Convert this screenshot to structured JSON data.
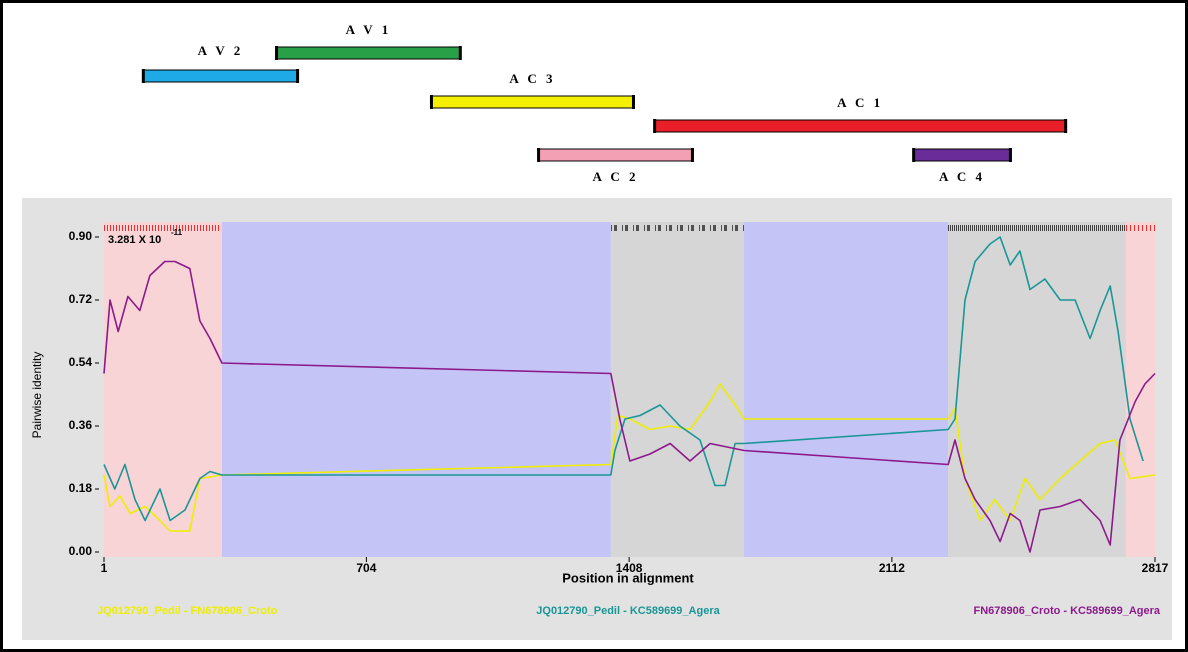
{
  "chart_data": {
    "type": "line",
    "xlabel": "Position in alignment",
    "ylabel": "Pairwise identity",
    "annotation": {
      "base": "3.281 X 10",
      "exponent": "-11"
    },
    "xlim": [
      1,
      2817
    ],
    "ylim": [
      0,
      0.9
    ],
    "xticks": [
      1,
      704,
      1408,
      2112,
      2817
    ],
    "yticks": [
      {
        "value": 0,
        "label": "0.00"
      },
      0.18,
      0.36,
      0.54,
      0.72,
      {
        "value": 0.9,
        "label": "0.90"
      }
    ],
    "genes": [
      {
        "name": "A V 2",
        "start": 105,
        "end": 521,
        "color": "#1eaae6"
      },
      {
        "name": "A V 1",
        "start": 462,
        "end": 957,
        "color": "#28a048"
      },
      {
        "name": "A C 3",
        "start": 877,
        "end": 1421,
        "color": "#f5f000"
      },
      {
        "name": "A C 1",
        "start": 1475,
        "end": 2579,
        "color": "#e81e28"
      },
      {
        "name": "A C 2",
        "start": 1164,
        "end": 1579,
        "color": "#f4a0b4"
      },
      {
        "name": "A C 4",
        "start": 2169,
        "end": 2431,
        "color": "#6a2c98"
      }
    ],
    "regions": [
      {
        "start": 1,
        "end": 317,
        "color": "#f8d4d6"
      },
      {
        "start": 317,
        "end": 1359,
        "color": "#c4c4f6"
      },
      {
        "start": 1359,
        "end": 1716,
        "color": "#d6d6d6"
      },
      {
        "start": 1716,
        "end": 2263,
        "color": "#c4c4f6"
      },
      {
        "start": 2263,
        "end": 2739,
        "color": "#d6d6d6"
      },
      {
        "start": 2739,
        "end": 2817,
        "color": "#f8d4d6"
      }
    ],
    "series": [
      {
        "name": "JQ012790_Pedil - FN678906_Croto",
        "color": "#eeee00",
        "x": [
          1,
          17,
          44,
          71,
          111,
          151,
          178,
          231,
          258,
          317,
          1359,
          1378,
          1410,
          1464,
          1518,
          1571,
          1625,
          1652,
          1692,
          1716,
          2263,
          2281,
          2308,
          2348,
          2388,
          2429,
          2469,
          2509,
          2563,
          2616,
          2670,
          2710,
          2750,
          2817
        ],
        "values": [
          0.22,
          0.13,
          0.16,
          0.11,
          0.13,
          0.09,
          0.06,
          0.06,
          0.21,
          0.22,
          0.25,
          0.39,
          0.38,
          0.35,
          0.36,
          0.35,
          0.43,
          0.48,
          0.42,
          0.38,
          0.38,
          0.41,
          0.21,
          0.09,
          0.15,
          0.09,
          0.21,
          0.15,
          0.21,
          0.26,
          0.31,
          0.32,
          0.21,
          0.22
        ]
      },
      {
        "name": "JQ012790_Pedil - KC589699_Agera",
        "color": "#1a9696",
        "x": [
          1,
          30,
          57,
          84,
          111,
          151,
          178,
          218,
          258,
          285,
          317,
          1359,
          1370,
          1397,
          1437,
          1491,
          1544,
          1598,
          1638,
          1665,
          1692,
          1716,
          2263,
          2281,
          2308,
          2335,
          2375,
          2402,
          2429,
          2455,
          2482,
          2522,
          2563,
          2603,
          2643,
          2670,
          2697,
          2718,
          2750,
          2785
        ],
        "values": [
          0.25,
          0.18,
          0.25,
          0.15,
          0.09,
          0.18,
          0.09,
          0.12,
          0.21,
          0.23,
          0.22,
          0.22,
          0.29,
          0.38,
          0.39,
          0.42,
          0.36,
          0.32,
          0.19,
          0.19,
          0.31,
          0.31,
          0.35,
          0.38,
          0.72,
          0.83,
          0.88,
          0.9,
          0.82,
          0.86,
          0.75,
          0.78,
          0.72,
          0.72,
          0.61,
          0.69,
          0.76,
          0.63,
          0.38,
          0.26
        ]
      },
      {
        "name": "FN678906_Croto - KC589699_Agera",
        "color": "#8c1a8c",
        "x": [
          1,
          17,
          39,
          65,
          97,
          124,
          164,
          191,
          231,
          258,
          285,
          317,
          1359,
          1383,
          1410,
          1464,
          1518,
          1571,
          1625,
          1716,
          2263,
          2281,
          2308,
          2335,
          2375,
          2402,
          2429,
          2455,
          2482,
          2509,
          2563,
          2616,
          2670,
          2697,
          2723,
          2764,
          2790,
          2817
        ],
        "values": [
          0.51,
          0.72,
          0.63,
          0.73,
          0.69,
          0.79,
          0.83,
          0.83,
          0.81,
          0.66,
          0.61,
          0.54,
          0.51,
          0.38,
          0.26,
          0.28,
          0.31,
          0.26,
          0.31,
          0.29,
          0.25,
          0.32,
          0.21,
          0.15,
          0.09,
          0.03,
          0.11,
          0.09,
          0,
          0.12,
          0.13,
          0.15,
          0.09,
          0.02,
          0.32,
          0.43,
          0.48,
          0.51
        ]
      }
    ]
  }
}
